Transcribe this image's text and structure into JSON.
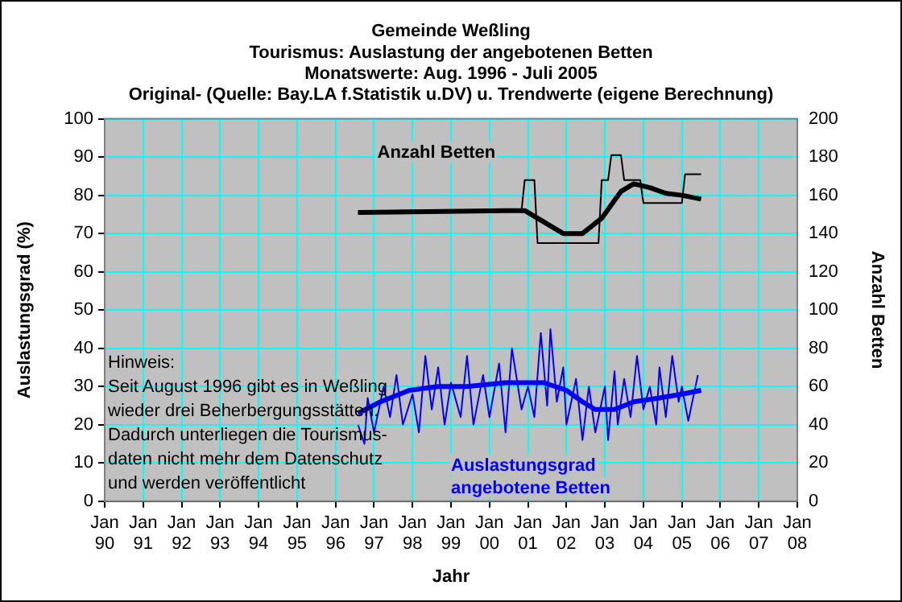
{
  "chart_data": {
    "type": "line",
    "title": "Gemeinde Weßling",
    "subtitle": "Tourismus: Auslastung der angebotenen Betten\nMonatswerte: Aug. 1996 - Juli 2005\nOriginal- (Quelle: Bay.LA f.Statistik u.DV) u. Trendwerte (eigene Berechnung)",
    "xlabel": "Jahr",
    "ylabel": "Auslastungsgrad (%)",
    "y2label": "Anzahl Betten",
    "annotations": [
      "Hinweis:\nSeit August 1996 gibt es in Weßling\nwieder drei Beherbergungsstätten.\nDadurch unterliegen die Tourismus-\ndaten nicht mehr dem Datenschutz\nund werden veröffentlicht"
    ],
    "xlim": [
      "1990-01",
      "2008-01"
    ],
    "xticks": [
      {
        "value": "1990-01",
        "label": "Jan 90"
      },
      {
        "value": "1991-01",
        "label": "Jan 91"
      },
      {
        "value": "1992-01",
        "label": "Jan 92"
      },
      {
        "value": "1993-01",
        "label": "Jan 93"
      },
      {
        "value": "1994-01",
        "label": "Jan 94"
      },
      {
        "value": "1995-01",
        "label": "Jan 95"
      },
      {
        "value": "1996-01",
        "label": "Jan 96"
      },
      {
        "value": "1997-01",
        "label": "Jan 97"
      },
      {
        "value": "1998-01",
        "label": "Jan 98"
      },
      {
        "value": "1999-01",
        "label": "Jan 99"
      },
      {
        "value": "2000-01",
        "label": "Jan 00"
      },
      {
        "value": "2001-01",
        "label": "Jan 01"
      },
      {
        "value": "2002-01",
        "label": "Jan 02"
      },
      {
        "value": "2003-01",
        "label": "Jan 03"
      },
      {
        "value": "2004-01",
        "label": "Jan 04"
      },
      {
        "value": "2005-01",
        "label": "Jan 05"
      },
      {
        "value": "2006-01",
        "label": "Jan 06"
      },
      {
        "value": "2007-01",
        "label": "Jan 07"
      },
      {
        "value": "2008-01",
        "label": "Jan 08"
      }
    ],
    "ylim": [
      0,
      100
    ],
    "yticks": [
      0,
      10,
      20,
      30,
      40,
      50,
      60,
      70,
      80,
      90,
      100
    ],
    "y2lim": [
      0,
      200
    ],
    "y2ticks": [
      0,
      20,
      40,
      60,
      80,
      100,
      120,
      140,
      160,
      180,
      200
    ],
    "grid": true,
    "legend": false,
    "marker": "none",
    "line_style": "solid",
    "series": [
      {
        "name": "Auslastungsgrad angebotene Betten",
        "color": "#0000ff",
        "x": [
          "1996-08",
          "1996-10",
          "1996-11",
          "1997-01",
          "1997-04",
          "1997-06",
          "1997-08",
          "1997-10",
          "1998-01",
          "1998-03",
          "1998-05",
          "1998-07",
          "1998-09",
          "1998-11",
          "1999-01",
          "1999-04",
          "1999-06",
          "1999-08",
          "1999-11",
          "2000-01",
          "2000-04",
          "2000-06",
          "2000-08",
          "2000-11",
          "2001-01",
          "2001-03",
          "2001-05",
          "2001-07",
          "2001-08",
          "2001-10",
          "2001-12",
          "2002-01",
          "2002-04",
          "2002-06",
          "2002-08",
          "2002-10",
          "2003-01",
          "2003-02",
          "2003-04",
          "2003-05",
          "2003-07",
          "2003-09",
          "2003-11",
          "2004-01",
          "2004-03",
          "2004-05",
          "2004-06",
          "2004-08",
          "2004-10",
          "2004-12",
          "2005-01",
          "2005-03",
          "2005-06"
        ],
        "values": [
          20,
          15,
          27,
          18,
          30,
          22,
          33,
          20,
          28,
          18,
          38,
          24,
          35,
          20,
          31,
          22,
          38,
          20,
          33,
          22,
          36,
          18,
          40,
          24,
          30,
          22,
          44,
          25,
          45,
          26,
          35,
          20,
          32,
          16,
          30,
          18,
          30,
          16,
          34,
          20,
          32,
          22,
          38,
          24,
          30,
          20,
          35,
          22,
          38,
          26,
          30,
          21,
          33
        ]
      },
      {
        "color": "#0000ff",
        "x": [
          "1996-08",
          "1997-03",
          "1997-12",
          "1998-09",
          "1999-06",
          "2000-06",
          "2001-06",
          "2002-01",
          "2002-06",
          "2002-10",
          "2003-04",
          "2003-10",
          "2004-06",
          "2005-01",
          "2005-07"
        ],
        "values": [
          23,
          26,
          29,
          30,
          30,
          31,
          31,
          29,
          26,
          24,
          24,
          26,
          27,
          28,
          29
        ]
      },
      {
        "name": "Anzahl Betten",
        "color": "#000000",
        "axis": "y2",
        "x": [
          "1996-08",
          "1997-08",
          "1997-09",
          "2000-11",
          "2000-12",
          "2001-03",
          "2001-04",
          "2002-11",
          "2002-12",
          "2003-02",
          "2003-03",
          "2003-06",
          "2003-07",
          "2003-12",
          "2004-01",
          "2005-01",
          "2005-02",
          "2005-07"
        ],
        "values": [
          151,
          151,
          152,
          152,
          168,
          168,
          135,
          135,
          168,
          168,
          181,
          181,
          168,
          168,
          156,
          156,
          171,
          171
        ]
      },
      {
        "color": "#000000",
        "axis": "y2",
        "x": [
          "1996-08",
          "2000-06",
          "2000-12",
          "2001-06",
          "2001-12",
          "2002-06",
          "2002-12",
          "2003-06",
          "2003-10",
          "2004-03",
          "2004-08",
          "2005-01",
          "2005-07"
        ],
        "values": [
          151,
          152,
          152,
          146,
          140,
          140,
          148,
          162,
          166,
          164,
          161,
          160,
          158
        ]
      }
    ]
  }
}
